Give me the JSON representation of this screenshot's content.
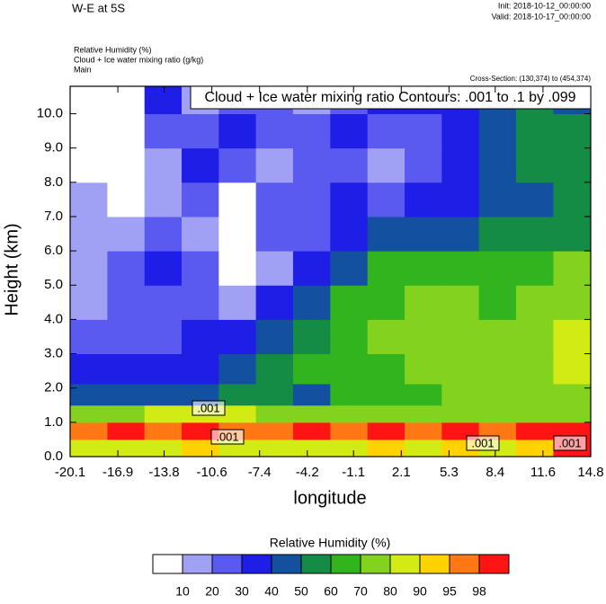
{
  "chart_data": {
    "type": "contour",
    "title": "W-E at 5S",
    "init": "Init: 2018-10-12_00:00:00",
    "valid": "Valid: 2018-10-17_00:00:00",
    "field_labels": [
      "Relative Humidity   (%)",
      "Cloud + Ice water mixing ratio   (g/kg)",
      "Main"
    ],
    "cross_section": "Cross-Section: (130,374) to (454,374)",
    "contour_info": "Cloud + Ice water mixing ratio Contours: .001 to .1 by .099",
    "contour_labels": [
      ".001",
      ".001",
      ".001",
      ".001"
    ],
    "x_label": "longitude",
    "y_label": "Height (km)",
    "xlim": [
      -20.1,
      14.8
    ],
    "ylim": [
      0,
      10.8
    ],
    "xticks": [
      -20.1,
      -16.9,
      -13.8,
      -10.6,
      -7.4,
      -4.2,
      -1.1,
      2.1,
      5.3,
      8.4,
      11.6,
      14.8
    ],
    "yticks": [
      {
        "value": 0,
        "label": "0.0"
      },
      {
        "value": 1,
        "label": "1.0"
      },
      {
        "value": 2,
        "label": "2.0"
      },
      {
        "value": 3,
        "label": "3.0"
      },
      {
        "value": 4,
        "label": "4.0"
      },
      {
        "value": 5,
        "label": "5.0"
      },
      {
        "value": 6,
        "label": "6.0"
      },
      {
        "value": 7,
        "label": "7.0"
      },
      {
        "value": 8,
        "label": "8.0"
      },
      {
        "value": 9,
        "label": "9.0"
      },
      {
        "value": 10,
        "label": "10.0"
      }
    ],
    "x": [
      -18.85,
      -16.36,
      -13.87,
      -11.38,
      -8.89,
      -6.4,
      -3.91,
      -1.41,
      1.08,
      3.57,
      6.06,
      8.55,
      11.04,
      13.55
    ],
    "y": [
      0.25,
      0.75,
      1.25,
      1.75,
      2.5,
      3.5,
      4.5,
      5.5,
      6.5,
      7.5,
      8.5,
      9.5,
      10.5
    ],
    "z": [
      [
        85,
        85,
        85,
        92,
        85,
        85,
        85,
        85,
        92,
        85,
        92,
        85,
        92,
        99
      ],
      [
        97,
        99,
        97,
        99,
        97,
        96,
        99,
        97,
        99,
        96,
        99,
        97,
        99,
        99
      ],
      [
        75,
        75,
        85,
        85,
        85,
        75,
        75,
        75,
        75,
        75,
        75,
        75,
        75,
        75
      ],
      [
        45,
        45,
        45,
        45,
        55,
        55,
        45,
        65,
        65,
        65,
        75,
        75,
        75,
        75
      ],
      [
        35,
        35,
        35,
        35,
        45,
        55,
        65,
        65,
        65,
        75,
        75,
        75,
        75,
        85
      ],
      [
        25,
        25,
        25,
        35,
        35,
        45,
        55,
        65,
        75,
        75,
        75,
        75,
        75,
        85
      ],
      [
        15,
        25,
        25,
        25,
        15,
        35,
        45,
        65,
        65,
        75,
        75,
        65,
        75,
        75
      ],
      [
        15,
        25,
        35,
        25,
        5,
        15,
        35,
        45,
        65,
        65,
        65,
        65,
        65,
        75
      ],
      [
        15,
        15,
        25,
        15,
        5,
        25,
        25,
        35,
        45,
        45,
        45,
        55,
        55,
        55
      ],
      [
        15,
        5,
        15,
        25,
        5,
        25,
        25,
        35,
        25,
        35,
        35,
        45,
        45,
        55
      ],
      [
        5,
        5,
        15,
        35,
        25,
        15,
        25,
        25,
        15,
        25,
        35,
        45,
        55,
        55
      ],
      [
        5,
        5,
        25,
        25,
        35,
        25,
        25,
        35,
        25,
        25,
        35,
        45,
        55,
        55
      ],
      [
        5,
        5,
        35,
        15,
        25,
        25,
        15,
        25,
        35,
        35,
        35,
        45,
        55,
        45
      ]
    ],
    "colorbar_title": "Relative Humidity  (%)",
    "levels": [
      10,
      20,
      30,
      40,
      50,
      60,
      70,
      80,
      90,
      95,
      98
    ],
    "colors": [
      "#ffffff",
      "#a0a0f5",
      "#5a5af0",
      "#1e1ee6",
      "#1450a0",
      "#148c46",
      "#32b41e",
      "#82d21e",
      "#d2eb14",
      "#ffd200",
      "#ff7814",
      "#ff1414"
    ]
  }
}
